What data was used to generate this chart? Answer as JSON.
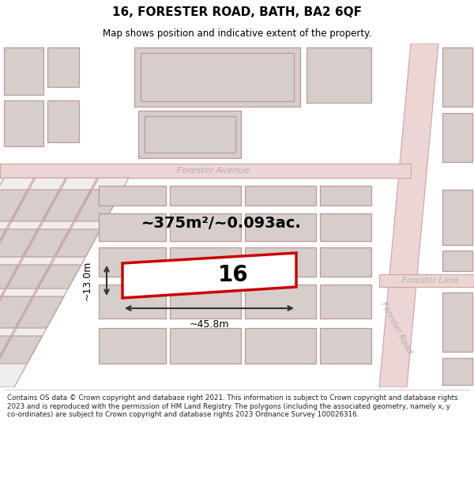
{
  "title": "16, FORESTER ROAD, BATH, BA2 6QF",
  "subtitle": "Map shows position and indicative extent of the property.",
  "footer": "Contains OS data © Crown copyright and database right 2021. This information is subject to Crown copyright and database rights 2023 and is reproduced with the permission of HM Land Registry. The polygons (including the associated geometry, namely x, y co-ordinates) are subject to Crown copyright and database rights 2023 Ordnance Survey 100026316.",
  "map_bg": "#f7f4f2",
  "road_color": "#ecd5d5",
  "road_stroke": "#d4a0a0",
  "building_fill": "#d5ceca",
  "building_stroke": "#c09898",
  "highlight_fill": "#ffffff",
  "highlight_stroke": "#cc0000",
  "area_text": "~375m²/~0.093ac.",
  "number_text": "16",
  "width_text": "~45.8m",
  "height_text": "~13.0m",
  "street_color": "#b0b0b0",
  "forester_avenue": "Forester Avenue",
  "forester_road_v": "Forester Road",
  "forester_lane": "Forester Lane"
}
